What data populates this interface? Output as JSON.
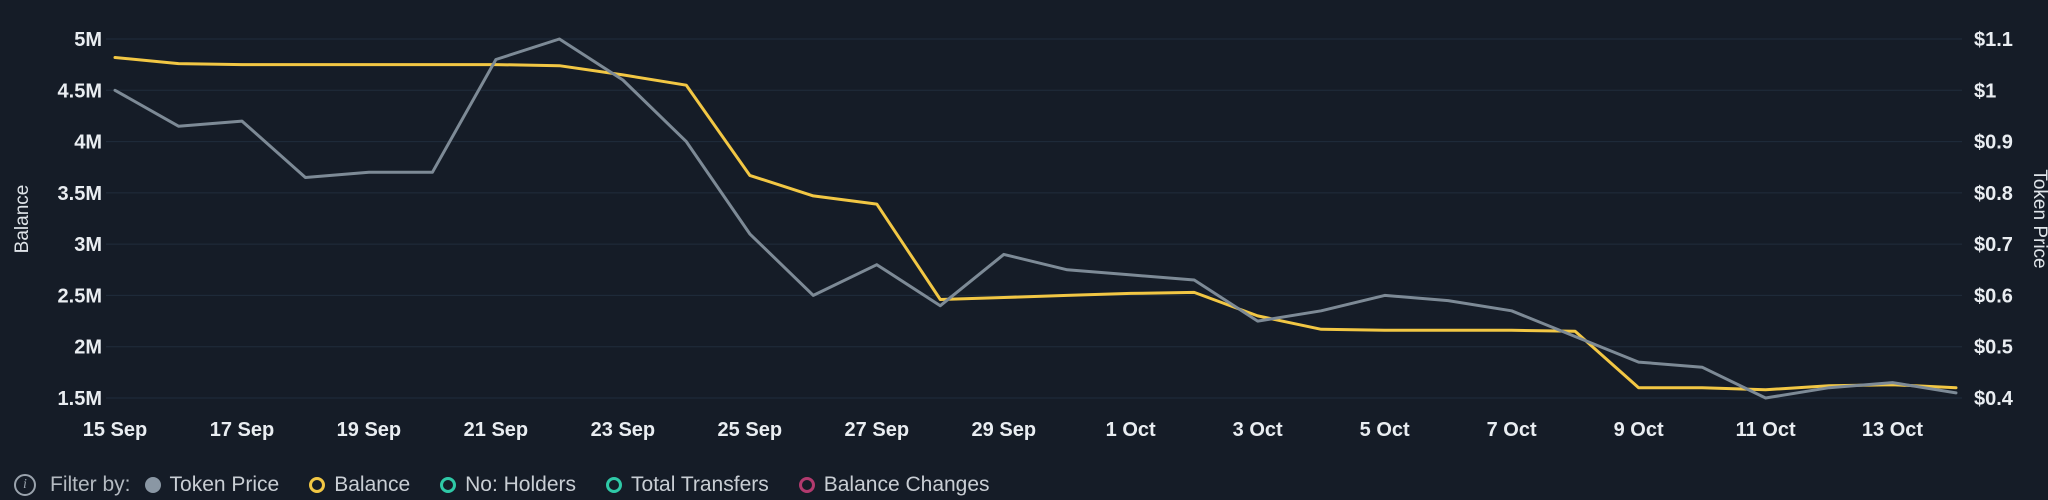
{
  "theme": {
    "background": "#151c27",
    "grid_color": "#202c3c",
    "balance_color": "#f2c744",
    "token_price_color": "#7d8a96"
  },
  "chart_data": {
    "type": "line",
    "x": [
      "15 Sep",
      "16 Sep",
      "17 Sep",
      "18 Sep",
      "19 Sep",
      "20 Sep",
      "21 Sep",
      "22 Sep",
      "23 Sep",
      "24 Sep",
      "25 Sep",
      "26 Sep",
      "27 Sep",
      "28 Sep",
      "29 Sep",
      "30 Sep",
      "1 Oct",
      "2 Oct",
      "3 Oct",
      "4 Oct",
      "5 Oct",
      "6 Oct",
      "7 Oct",
      "8 Oct",
      "9 Oct",
      "10 Oct",
      "11 Oct",
      "12 Oct",
      "13 Oct",
      "14 Oct"
    ],
    "x_tick_labels": [
      "15 Sep",
      "17 Sep",
      "19 Sep",
      "21 Sep",
      "23 Sep",
      "25 Sep",
      "27 Sep",
      "29 Sep",
      "1 Oct",
      "3 Oct",
      "5 Oct",
      "7 Oct",
      "9 Oct",
      "11 Oct",
      "13 Oct"
    ],
    "left_axis": {
      "title": "Balance",
      "min": 1.5,
      "max": 5,
      "ticks": [
        {
          "v": 5,
          "label": "5M"
        },
        {
          "v": 4.5,
          "label": "4.5M"
        },
        {
          "v": 4,
          "label": "4M"
        },
        {
          "v": 3.5,
          "label": "3.5M"
        },
        {
          "v": 3,
          "label": "3M"
        },
        {
          "v": 2.5,
          "label": "2.5M"
        },
        {
          "v": 2,
          "label": "2M"
        },
        {
          "v": 1.5,
          "label": "1.5M"
        }
      ]
    },
    "right_axis": {
      "title": "Token Price",
      "min": 0.4,
      "max": 1.1,
      "ticks": [
        {
          "v": 1.1,
          "label": "$1.1"
        },
        {
          "v": 1.0,
          "label": "$1"
        },
        {
          "v": 0.9,
          "label": "$0.9"
        },
        {
          "v": 0.8,
          "label": "$0.8"
        },
        {
          "v": 0.7,
          "label": "$0.7"
        },
        {
          "v": 0.6,
          "label": "$0.6"
        },
        {
          "v": 0.5,
          "label": "$0.5"
        },
        {
          "v": 0.4,
          "label": "$0.4"
        }
      ]
    },
    "series": [
      {
        "name": "Balance",
        "axis": "left",
        "color": "#f2c744",
        "values": [
          4.82,
          4.76,
          4.75,
          4.75,
          4.75,
          4.75,
          4.75,
          4.74,
          4.65,
          4.55,
          3.67,
          3.47,
          3.39,
          2.46,
          2.48,
          2.5,
          2.52,
          2.53,
          2.3,
          2.17,
          2.16,
          2.16,
          2.16,
          2.15,
          1.6,
          1.6,
          1.58,
          1.62,
          1.63,
          1.6
        ]
      },
      {
        "name": "Token Price",
        "axis": "right",
        "color": "#7d8a96",
        "values": [
          1.0,
          0.93,
          0.94,
          0.83,
          0.84,
          0.84,
          1.06,
          1.1,
          1.02,
          0.9,
          0.72,
          0.6,
          0.66,
          0.58,
          0.68,
          0.65,
          0.64,
          0.63,
          0.55,
          0.57,
          0.6,
          0.59,
          0.57,
          0.52,
          0.47,
          0.46,
          0.4,
          0.42,
          0.43,
          0.41
        ]
      }
    ],
    "grid": "horizontal-only",
    "legend_position": "bottom"
  },
  "footer": {
    "info_icon": "i",
    "filter_label": "Filter by:"
  },
  "legend": {
    "items": [
      {
        "label": "Token Price",
        "marker": "filled",
        "color": "#8a97a4"
      },
      {
        "label": "Balance",
        "marker": "ring",
        "color": "#f2c744"
      },
      {
        "label": "No: Holders",
        "marker": "ring",
        "color": "#2fc9a7"
      },
      {
        "label": "Total Transfers",
        "marker": "ring",
        "color": "#2fc9a7"
      },
      {
        "label": "Balance Changes",
        "marker": "ring",
        "color": "#b23a6e"
      }
    ]
  }
}
